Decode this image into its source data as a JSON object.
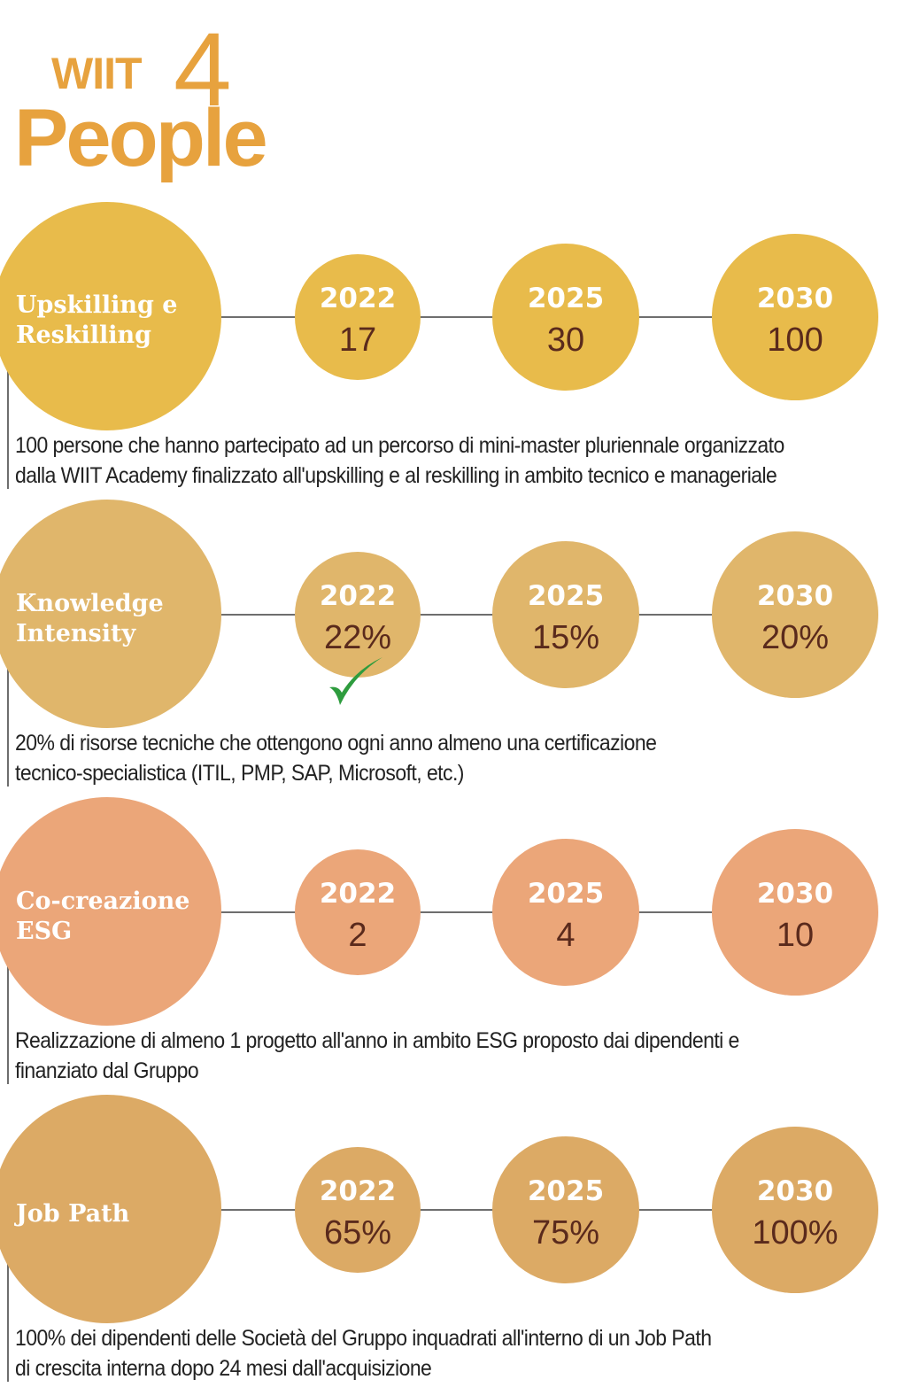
{
  "logo": {
    "top": "WIIT",
    "four": "4",
    "bottom": "People",
    "color": "#e7a23e"
  },
  "sections": [
    {
      "title_line1": "Upskilling e",
      "title_line2": "Reskilling",
      "color": "#e8bb4b",
      "milestones": [
        {
          "year": "2022",
          "value": "17"
        },
        {
          "year": "2025",
          "value": "30"
        },
        {
          "year": "2030",
          "value": "100"
        }
      ],
      "desc_line1": "100 persone che hanno partecipato ad un percorso di mini-master pluriennale organizzato",
      "desc_line2": "dalla WIIT Academy finalizzato all'upskilling e al reskilling in ambito tecnico e manageriale"
    },
    {
      "title_line1": "Knowledge",
      "title_line2": "Intensity",
      "color": "#e0b66b",
      "milestones": [
        {
          "year": "2022",
          "value": "22%"
        },
        {
          "year": "2025",
          "value": "15%"
        },
        {
          "year": "2030",
          "value": "20%"
        }
      ],
      "desc_line1": "20% di risorse tecniche che ottengono ogni anno almeno una certificazione",
      "desc_line2": "tecnico-specialistica (ITIL, PMP, SAP, Microsoft, etc.)",
      "check_color": "#2e9c3e"
    },
    {
      "title_line1": "Co-creazione",
      "title_line2": "ESG",
      "color": "#eba679",
      "milestones": [
        {
          "year": "2022",
          "value": "2"
        },
        {
          "year": "2025",
          "value": "4"
        },
        {
          "year": "2030",
          "value": "10"
        }
      ],
      "desc_line1": "Realizzazione di almeno 1 progetto all'anno in ambito ESG proposto dai dipendenti e",
      "desc_line2": "finanziato dal Gruppo"
    },
    {
      "title_line1": "Job Path",
      "title_line2": "",
      "color": "#dcaa65",
      "milestones": [
        {
          "year": "2022",
          "value": "65%"
        },
        {
          "year": "2025",
          "value": "75%"
        },
        {
          "year": "2030",
          "value": "100%"
        }
      ],
      "desc_line1": "100% dei dipendenti delle Società del Gruppo inquadrati all'interno di un Job Path",
      "desc_line2": "di crescita interna dopo 24 mesi dall'acquisizione"
    }
  ]
}
